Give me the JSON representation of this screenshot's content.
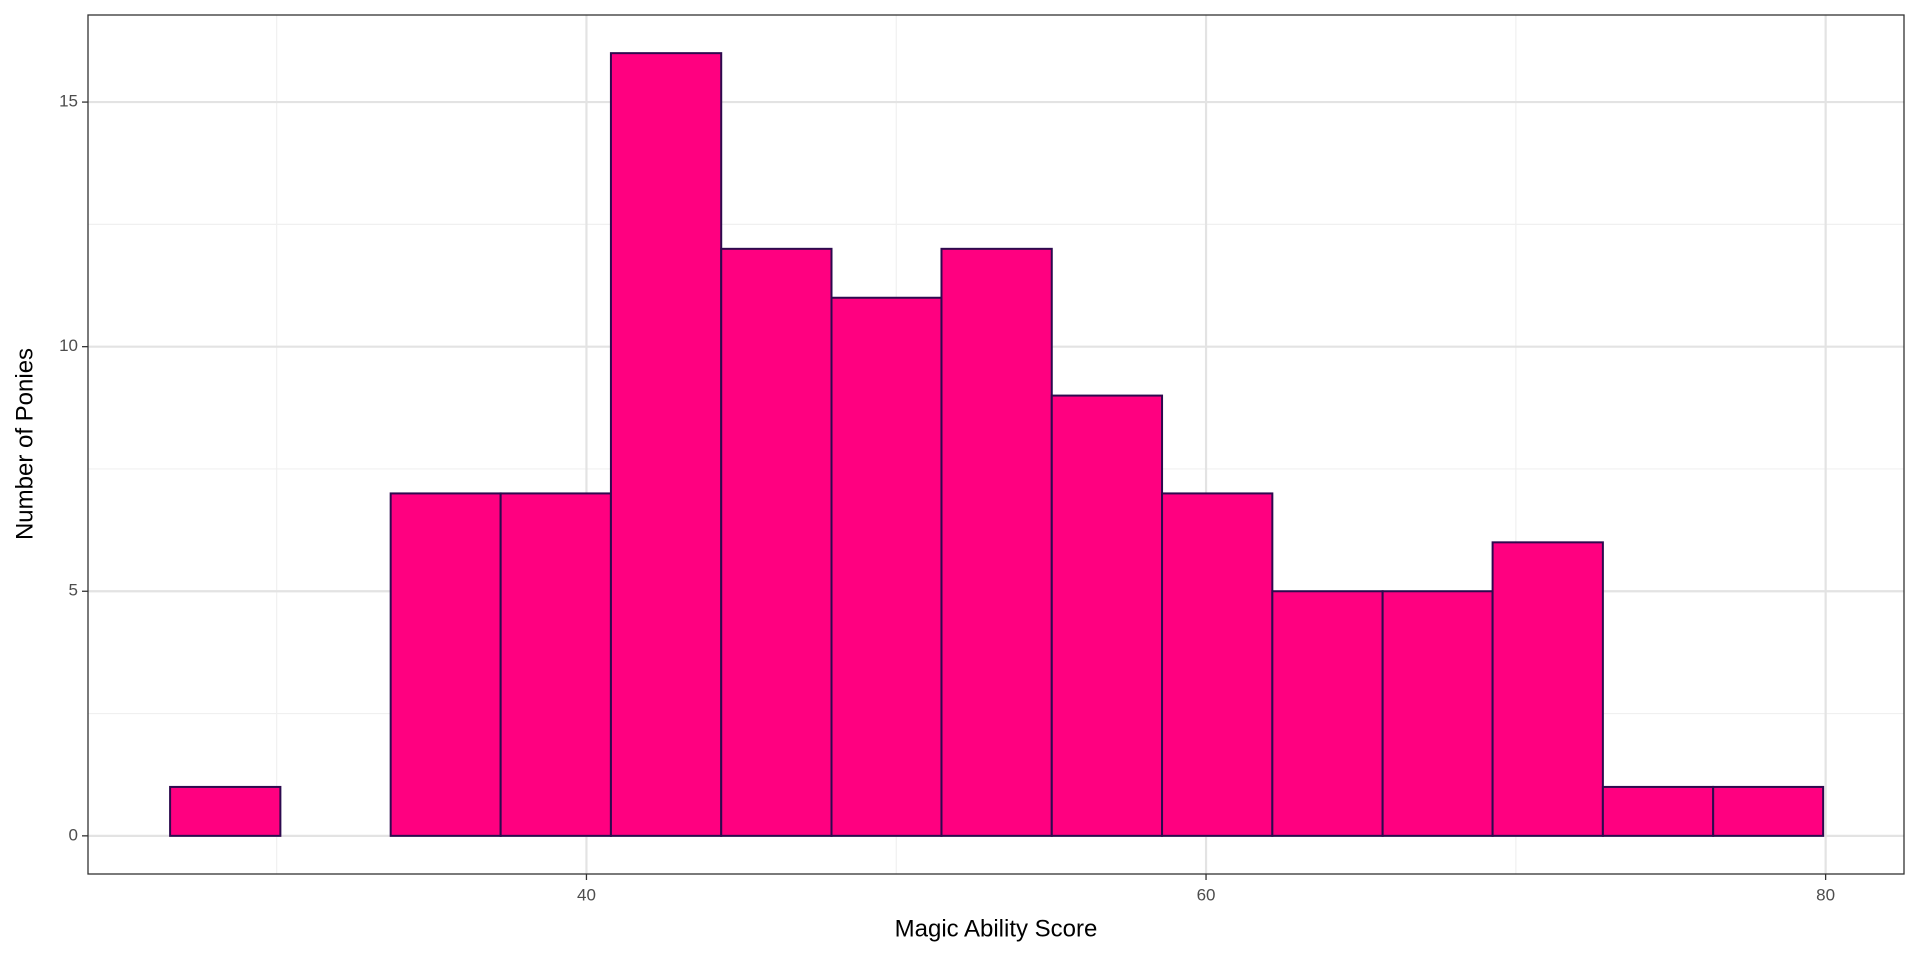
{
  "chart_data": {
    "type": "histogram",
    "x_label": "Magic Ability Score",
    "y_label": "Number of Ponies",
    "bins": [
      26.56,
      30.12,
      33.68,
      37.23,
      40.79,
      44.35,
      47.91,
      51.46,
      55.02,
      58.58,
      62.14,
      65.7,
      69.25,
      72.81,
      76.37,
      79.92
    ],
    "values": [
      1,
      0,
      7,
      7,
      16,
      12,
      11,
      12,
      9,
      7,
      5,
      5,
      6,
      1,
      1
    ],
    "color": "#ff0080",
    "edge_color": "#2d0a4e",
    "xlim": [
      23.91,
      82.53
    ],
    "xticks": [
      40,
      60,
      80
    ],
    "ylim": [
      -0.78,
      16.78
    ],
    "yticks": [
      0,
      5,
      10,
      15
    ],
    "grid": true
  }
}
